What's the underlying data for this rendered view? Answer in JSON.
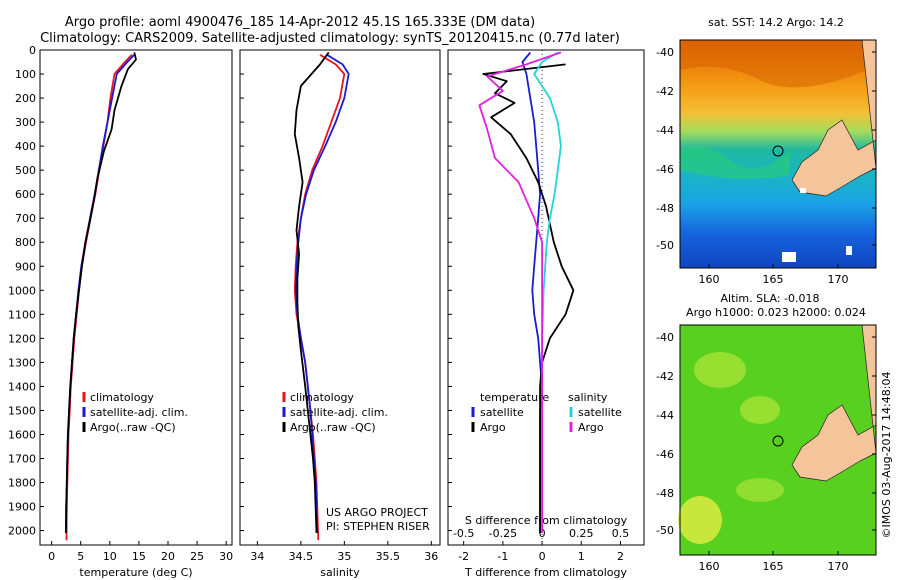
{
  "title": {
    "line1": "Argo profile: aoml 4900476_185 14-Apr-2012 45.1S 165.333E (DM data)",
    "line2": "Climatology: CARS2009. Satellite-adjusted climatology: synTS_20120415.nc (0.77d later)"
  },
  "colors": {
    "climatology": "#e8141e",
    "satellite": "#1a1ad2",
    "argo": "#000000",
    "satellite_s": "#22d4d8",
    "argo_s": "#e020e0"
  },
  "depth_ticks": [
    "0",
    "100",
    "200",
    "300",
    "400",
    "500",
    "600",
    "700",
    "800",
    "900",
    "1000",
    "1100",
    "1200",
    "1300",
    "1400",
    "1500",
    "1600",
    "1700",
    "1800",
    "1900",
    "2000"
  ],
  "chart_data": [
    {
      "type": "line",
      "xlabel": "temperature (deg C)",
      "xticks": [
        "0",
        "5",
        "10",
        "15",
        "20",
        "25",
        "30"
      ],
      "xlim": [
        -2,
        31
      ],
      "ylim": [
        2060,
        0
      ],
      "legend": [
        "climatology",
        "satellite-adj. clim.",
        "Argo(..raw -QC)"
      ],
      "series": [
        {
          "name": "climatology",
          "color_key": "climatology",
          "x": [
            13.8,
            12.6,
            10.8,
            10.1,
            9.6,
            8.9,
            8.2,
            7.5,
            6.7,
            5.9,
            5.2,
            4.7,
            4.3,
            3.9,
            3.6,
            3.3,
            3.1,
            2.9,
            2.8,
            2.7,
            2.6,
            2.55
          ],
          "y": [
            20,
            50,
            100,
            200,
            300,
            400,
            500,
            600,
            700,
            800,
            900,
            1000,
            1100,
            1200,
            1300,
            1400,
            1500,
            1600,
            1700,
            1800,
            1900,
            2040
          ]
        },
        {
          "name": "satellite-adj. clim.",
          "color_key": "satellite",
          "x": [
            14.2,
            13.0,
            11.2,
            10.4,
            9.6,
            8.8,
            8.1,
            7.4,
            6.6,
            5.8,
            5.1,
            4.6,
            4.2,
            3.8,
            3.5,
            3.2,
            3.0,
            2.8,
            2.7,
            2.6,
            2.5,
            2.45
          ],
          "y": [
            20,
            50,
            100,
            200,
            300,
            400,
            500,
            600,
            700,
            800,
            900,
            1000,
            1100,
            1200,
            1300,
            1400,
            1500,
            1600,
            1700,
            1800,
            1900,
            2010
          ]
        },
        {
          "name": "Argo(..raw -QC)",
          "color_key": "argo",
          "x": [
            14.2,
            14.5,
            13.1,
            12.0,
            10.8,
            10.3,
            9.0,
            7.9,
            7.3,
            6.6,
            5.8,
            5.2,
            4.7,
            4.2,
            3.8,
            3.5,
            3.2,
            3.0,
            2.8,
            2.7,
            2.6,
            2.5,
            2.45
          ],
          "y": [
            10,
            40,
            80,
            150,
            250,
            330,
            420,
            530,
            620,
            710,
            800,
            900,
            1000,
            1100,
            1200,
            1300,
            1400,
            1500,
            1600,
            1700,
            1800,
            1900,
            2010
          ]
        }
      ]
    },
    {
      "type": "line",
      "xlabel": "salinity",
      "xticks": [
        "34",
        "34.5",
        "35",
        "35.5",
        "36"
      ],
      "xlim": [
        33.8,
        36.1
      ],
      "ylim": [
        2060,
        0
      ],
      "legend": [
        "climatology",
        "satellite-adj. clim.",
        "Argo(..raw -QC)"
      ],
      "series": [
        {
          "name": "climatology",
          "color_key": "climatology",
          "x": [
            34.72,
            34.9,
            35.0,
            34.95,
            34.85,
            34.75,
            34.63,
            34.55,
            34.5,
            34.46,
            34.44,
            34.43,
            34.45,
            34.5,
            34.55,
            34.58,
            34.61,
            34.64,
            34.66,
            34.68,
            34.7
          ],
          "y": [
            20,
            60,
            100,
            200,
            300,
            400,
            500,
            600,
            700,
            800,
            900,
            1000,
            1100,
            1200,
            1300,
            1400,
            1500,
            1600,
            1700,
            1800,
            2040
          ]
        },
        {
          "name": "satellite-adj. clim.",
          "color_key": "satellite",
          "x": [
            34.8,
            34.98,
            35.05,
            35.0,
            34.9,
            34.78,
            34.65,
            34.56,
            34.5,
            34.47,
            34.45,
            34.44,
            34.46,
            34.5,
            34.55,
            34.58,
            34.61,
            34.63,
            34.65,
            34.67,
            34.69
          ],
          "y": [
            20,
            60,
            100,
            200,
            300,
            400,
            500,
            600,
            700,
            800,
            900,
            1000,
            1100,
            1200,
            1300,
            1400,
            1500,
            1600,
            1700,
            1800,
            2010
          ]
        },
        {
          "name": "Argo(..raw -QC)",
          "color_key": "argo",
          "x": [
            34.82,
            34.72,
            34.5,
            34.45,
            34.43,
            34.48,
            34.52,
            34.48,
            34.45,
            34.48,
            34.46,
            34.46,
            34.47,
            34.5,
            34.55,
            34.58,
            34.61,
            34.64,
            34.66,
            34.68
          ],
          "y": [
            10,
            60,
            150,
            250,
            350,
            450,
            550,
            650,
            750,
            850,
            950,
            1050,
            1150,
            1250,
            1400,
            1500,
            1600,
            1700,
            1800,
            2010
          ]
        }
      ],
      "annotation": [
        "US ARGO PROJECT",
        "PI: STEPHEN RISER"
      ]
    },
    {
      "type": "line",
      "xlabel": "T difference from climatology",
      "top_xlabel": "S difference from climatology",
      "xticks": [
        "-2",
        "-1",
        "0",
        "1",
        "2"
      ],
      "top_xticks": [
        "-0.5",
        "-0.25",
        "0",
        "0.25",
        "0.5"
      ],
      "xlim": [
        -2.4,
        2.6
      ],
      "ylim": [
        2060,
        0
      ],
      "legend_groups": [
        {
          "title": "temperature",
          "items": [
            "satellite",
            "Argo"
          ]
        },
        {
          "title": "salinity",
          "items": [
            "satellite",
            "Argo"
          ]
        }
      ],
      "series": [
        {
          "name": "T satellite",
          "color_key": "satellite",
          "x": [
            -0.3,
            -0.5,
            -0.4,
            -0.3,
            -0.2,
            -0.15,
            -0.1,
            -0.05,
            -0.1,
            -0.15,
            -0.2,
            -0.25,
            -0.2,
            -0.1,
            -0.05,
            0.0,
            -0.05,
            -0.05,
            -0.05
          ],
          "y": [
            10,
            50,
            100,
            200,
            300,
            400,
            500,
            600,
            700,
            800,
            900,
            1000,
            1100,
            1200,
            1300,
            1400,
            1500,
            1700,
            2010
          ]
        },
        {
          "name": "T Argo",
          "color_key": "argo",
          "x": [
            0.6,
            -1.5,
            -0.9,
            -1.2,
            -0.7,
            -1.3,
            -0.8,
            -0.4,
            -0.1,
            0.1,
            0.3,
            0.5,
            0.8,
            0.6,
            0.2,
            0.0,
            -0.05,
            -0.05
          ],
          "y": [
            60,
            100,
            130,
            180,
            220,
            280,
            350,
            450,
            550,
            650,
            800,
            900,
            1000,
            1100,
            1200,
            1300,
            1400,
            2010
          ]
        },
        {
          "name": "S satellite",
          "color_key": "satellite_s",
          "x": [
            0.1,
            0.0,
            -0.05,
            0.05,
            0.1,
            0.12,
            0.1,
            0.08,
            0.05,
            0.03,
            0.02,
            0.01,
            0.0,
            0.0
          ],
          "y": [
            10,
            50,
            100,
            200,
            300,
            400,
            500,
            600,
            700,
            800,
            900,
            1000,
            1200,
            2010
          ]
        },
        {
          "name": "S Argo",
          "color_key": "argo_s",
          "x": [
            0.12,
            -0.1,
            -0.35,
            -0.25,
            -0.4,
            -0.35,
            -0.3,
            -0.15,
            -0.05,
            0.0,
            0.0
          ],
          "y": [
            10,
            60,
            110,
            170,
            230,
            330,
            450,
            550,
            700,
            800,
            2010
          ]
        }
      ]
    }
  ],
  "maps": [
    {
      "title": "sat. SST: 14.2 Argo: 14.2",
      "lat_ticks": [
        "-40",
        "-42",
        "-44",
        "-46",
        "-48",
        "-50"
      ],
      "lon_ticks": [
        "160",
        "165",
        "170"
      ]
    },
    {
      "title_line1": "Altim. SLA: -0.018",
      "title_line2": "Argo h1000: 0.023 h2000: 0.024",
      "lat_ticks": [
        "-40",
        "-42",
        "-44",
        "-46",
        "-48",
        "-50"
      ],
      "lon_ticks": [
        "160",
        "165",
        "170"
      ]
    }
  ],
  "credit": "©IMOS 03-Aug-2017 14:48:04"
}
